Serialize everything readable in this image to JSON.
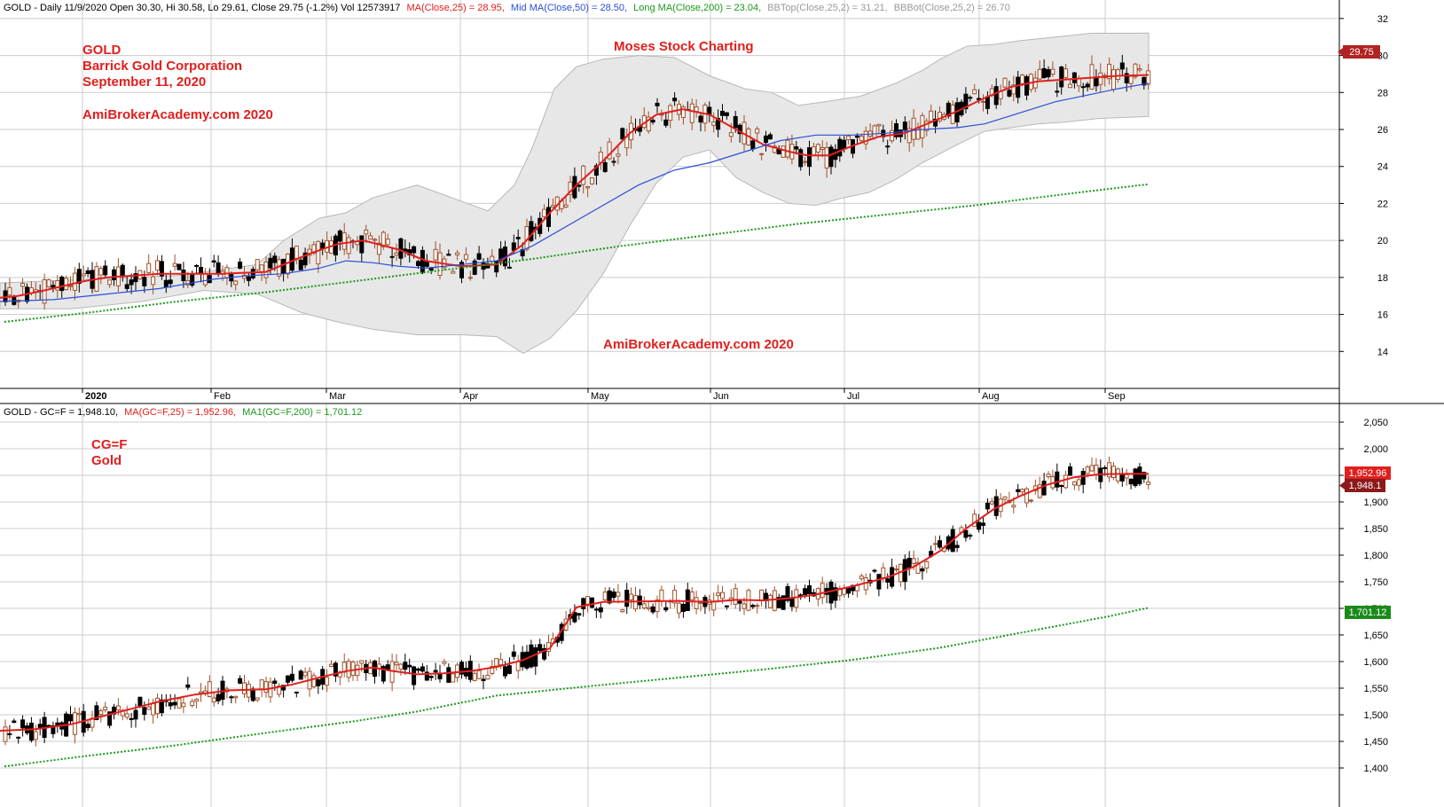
{
  "colors": {
    "background": "#ffffff",
    "grid": "#cccccc",
    "up_candle": "#a0522d",
    "down_candle": "#000000",
    "ma_short": "#e0201d",
    "ma_mid": "#2a4fd6",
    "ma_long": "#1a9a1a",
    "bollinger_fill": "#e7e7e7",
    "bollinger_edge": "#b8b8b8",
    "annotation_red": "#e0201d",
    "price_box_red": "#b22222",
    "price_box_green": "#1a8a1a"
  },
  "top_panel": {
    "header": {
      "title": "GOLD - Daily 11/9/2020 Open 30.30, Hi 30.58, Lo 29.61, Close 29.75 (-1.2%) Vol 12573917",
      "ma_short": "MA(Close,25) = 28.95,",
      "ma_mid": "Mid MA(Close,50) = 28.50,",
      "ma_long": "Long MA(Close,200) = 23.04,",
      "bb_top": "BBTop(Close,25,2) = 31.21,",
      "bb_bot": "BBBot(Close,25,2) = 26.70"
    },
    "annotations": {
      "line1": "GOLD",
      "line2": "Barrick Gold Corporation",
      "line3": "September 11, 2020",
      "line4": "AmiBrokerAcademy.com  2020",
      "center_top": "Moses Stock Charting",
      "center_bottom": "AmiBrokerAcademy.com  2020"
    },
    "price_label": "29.75"
  },
  "bottom_panel": {
    "header": {
      "title": "GOLD - GC=F = 1,948.10,",
      "ma": "MA(GC=F,25) = 1,952.96,",
      "ma1": "MA1(GC=F,200) = 1,701.12"
    },
    "annotations": {
      "line1": "CG=F",
      "line2": "Gold"
    },
    "price_labels": {
      "ma": "1,952.96",
      "close": "1,948.1",
      "ma200": "1,701.12"
    }
  },
  "x_axis": {
    "months": [
      "2020",
      "Feb",
      "Mar",
      "Apr",
      "May",
      "Jun",
      "Jul",
      "Aug",
      "Sep"
    ]
  },
  "chart_data": [
    {
      "type": "candlestick",
      "name": "GOLD",
      "ylim": [
        12,
        33
      ],
      "y_ticks": [
        "14",
        "16",
        "18",
        "20",
        "22",
        "24",
        "26",
        "28",
        "30",
        "32"
      ],
      "grid": true,
      "months": [
        "2020",
        "Feb",
        "Mar",
        "Apr",
        "May",
        "Jun",
        "Jul",
        "Aug",
        "Sep"
      ],
      "series": [
        {
          "name": "MA(Close,25)",
          "points": [
            [
              0,
              16.9
            ],
            [
              20,
              17.0
            ],
            [
              50,
              17.3
            ],
            [
              95,
              17.8
            ],
            [
              120,
              18.0
            ],
            [
              180,
              18.2
            ],
            [
              250,
              18.2
            ],
            [
              300,
              18.3
            ],
            [
              350,
              19.3
            ],
            [
              380,
              19.8
            ],
            [
              410,
              20.0
            ],
            [
              450,
              19.5
            ],
            [
              480,
              18.9
            ],
            [
              520,
              18.6
            ],
            [
              560,
              18.7
            ],
            [
              590,
              19.8
            ],
            [
              620,
              21.5
            ],
            [
              650,
              23.0
            ],
            [
              680,
              24.3
            ],
            [
              710,
              25.8
            ],
            [
              740,
              26.8
            ],
            [
              770,
              27.1
            ],
            [
              800,
              26.8
            ],
            [
              830,
              26.0
            ],
            [
              860,
              25.2
            ],
            [
              890,
              24.8
            ],
            [
              910,
              24.6
            ],
            [
              935,
              24.6
            ],
            [
              960,
              25.1
            ],
            [
              990,
              25.6
            ],
            [
              1020,
              25.8
            ],
            [
              1050,
              26.4
            ],
            [
              1080,
              27.0
            ],
            [
              1110,
              27.7
            ],
            [
              1140,
              28.3
            ],
            [
              1170,
              28.6
            ],
            [
              1200,
              28.7
            ],
            [
              1230,
              28.8
            ],
            [
              1260,
              28.9
            ],
            [
              1295,
              28.95
            ]
          ]
        },
        {
          "name": "Mid MA(Close,50)",
          "points": [
            [
              0,
              16.7
            ],
            [
              60,
              16.8
            ],
            [
              120,
              17.1
            ],
            [
              180,
              17.4
            ],
            [
              240,
              17.9
            ],
            [
              280,
              18.1
            ],
            [
              320,
              18.2
            ],
            [
              360,
              18.5
            ],
            [
              390,
              18.9
            ],
            [
              420,
              18.8
            ],
            [
              450,
              18.6
            ],
            [
              480,
              18.5
            ],
            [
              520,
              18.7
            ],
            [
              560,
              18.9
            ],
            [
              600,
              19.7
            ],
            [
              640,
              20.8
            ],
            [
              680,
              21.9
            ],
            [
              720,
              23.0
            ],
            [
              760,
              23.8
            ],
            [
              800,
              24.2
            ],
            [
              840,
              24.8
            ],
            [
              880,
              25.4
            ],
            [
              920,
              25.7
            ],
            [
              960,
              25.7
            ],
            [
              1000,
              25.8
            ],
            [
              1040,
              26.0
            ],
            [
              1080,
              26.1
            ],
            [
              1110,
              26.3
            ],
            [
              1150,
              26.9
            ],
            [
              1190,
              27.5
            ],
            [
              1230,
              27.9
            ],
            [
              1260,
              28.2
            ],
            [
              1295,
              28.5
            ]
          ]
        },
        {
          "name": "Long MA(Close,200)",
          "points": [
            [
              5,
              15.6
            ],
            [
              100,
              16.1
            ],
            [
              200,
              16.7
            ],
            [
              300,
              17.2
            ],
            [
              400,
              17.8
            ],
            [
              500,
              18.4
            ],
            [
              600,
              19.0
            ],
            [
              700,
              19.7
            ],
            [
              800,
              20.3
            ],
            [
              900,
              20.9
            ],
            [
              1000,
              21.4
            ],
            [
              1100,
              21.9
            ],
            [
              1200,
              22.5
            ],
            [
              1295,
              23.04
            ]
          ]
        }
      ],
      "bollinger": {
        "upper": [
          [
            0,
            17.7
          ],
          [
            100,
            17.9
          ],
          [
            200,
            18.1
          ],
          [
            290,
            18.7
          ],
          [
            320,
            20.0
          ],
          [
            360,
            21.2
          ],
          [
            390,
            21.5
          ],
          [
            420,
            22.3
          ],
          [
            470,
            23.0
          ],
          [
            510,
            22.3
          ],
          [
            550,
            21.6
          ],
          [
            580,
            23.0
          ],
          [
            600,
            25.0
          ],
          [
            625,
            28.2
          ],
          [
            650,
            29.4
          ],
          [
            680,
            29.8
          ],
          [
            720,
            30.0
          ],
          [
            760,
            29.9
          ],
          [
            800,
            28.9
          ],
          [
            840,
            28.2
          ],
          [
            870,
            28.0
          ],
          [
            900,
            27.3
          ],
          [
            930,
            27.5
          ],
          [
            970,
            27.8
          ],
          [
            1010,
            28.5
          ],
          [
            1040,
            29.2
          ],
          [
            1060,
            29.8
          ],
          [
            1090,
            30.5
          ],
          [
            1120,
            30.6
          ],
          [
            1150,
            30.8
          ],
          [
            1190,
            31.0
          ],
          [
            1230,
            31.2
          ],
          [
            1270,
            31.2
          ],
          [
            1295,
            31.21
          ]
        ],
        "lower": [
          [
            0,
            16.3
          ],
          [
            80,
            16.3
          ],
          [
            160,
            16.7
          ],
          [
            230,
            17.3
          ],
          [
            290,
            17.1
          ],
          [
            340,
            16.1
          ],
          [
            380,
            15.6
          ],
          [
            420,
            15.2
          ],
          [
            470,
            14.9
          ],
          [
            520,
            14.9
          ],
          [
            560,
            14.8
          ],
          [
            590,
            13.9
          ],
          [
            620,
            14.7
          ],
          [
            650,
            16.2
          ],
          [
            680,
            18.2
          ],
          [
            710,
            20.8
          ],
          [
            740,
            23.1
          ],
          [
            770,
            24.5
          ],
          [
            800,
            24.9
          ],
          [
            830,
            23.4
          ],
          [
            860,
            22.6
          ],
          [
            890,
            22.0
          ],
          [
            920,
            21.9
          ],
          [
            950,
            22.3
          ],
          [
            980,
            22.6
          ],
          [
            1010,
            23.3
          ],
          [
            1040,
            24.2
          ],
          [
            1080,
            25.2
          ],
          [
            1110,
            25.9
          ],
          [
            1140,
            26.1
          ],
          [
            1170,
            26.3
          ],
          [
            1200,
            26.4
          ],
          [
            1240,
            26.6
          ],
          [
            1295,
            26.7
          ]
        ]
      }
    },
    {
      "type": "candlestick",
      "name": "GC=F",
      "ylim": [
        1385,
        2085
      ],
      "y_ticks": [
        "1,400",
        "1,450",
        "1,500",
        "1,550",
        "1,600",
        "1,650",
        "1,700",
        "1,750",
        "1,800",
        "1,850",
        "1,900",
        "1,950",
        "2,000",
        "2,050"
      ],
      "grid": true,
      "series": [
        {
          "name": "MA(GC=F,25)",
          "points": [
            [
              0,
              1470
            ],
            [
              40,
              1473
            ],
            [
              80,
              1482
            ],
            [
              110,
              1495
            ],
            [
              150,
              1512
            ],
            [
              180,
              1525
            ],
            [
              220,
              1538
            ],
            [
              260,
              1546
            ],
            [
              300,
              1548
            ],
            [
              330,
              1557
            ],
            [
              360,
              1570
            ],
            [
              390,
              1582
            ],
            [
              420,
              1589
            ],
            [
              440,
              1583
            ],
            [
              470,
              1576
            ],
            [
              500,
              1578
            ],
            [
              530,
              1582
            ],
            [
              560,
              1590
            ],
            [
              590,
              1603
            ],
            [
              620,
              1625
            ],
            [
              650,
              1702
            ],
            [
              680,
              1712
            ],
            [
              720,
              1713
            ],
            [
              760,
              1714
            ],
            [
              800,
              1712
            ],
            [
              830,
              1716
            ],
            [
              860,
              1715
            ],
            [
              890,
              1719
            ],
            [
              920,
              1726
            ],
            [
              960,
              1741
            ],
            [
              1000,
              1758
            ],
            [
              1030,
              1778
            ],
            [
              1060,
              1808
            ],
            [
              1090,
              1851
            ],
            [
              1120,
              1886
            ],
            [
              1150,
              1911
            ],
            [
              1180,
              1932
            ],
            [
              1210,
              1946
            ],
            [
              1240,
              1952
            ],
            [
              1270,
              1953
            ],
            [
              1295,
              1952.96
            ]
          ]
        },
        {
          "name": "MA1(GC=F,200)",
          "points": [
            [
              5,
              1403
            ],
            [
              100,
              1423
            ],
            [
              200,
              1443
            ],
            [
              300,
              1466
            ],
            [
              400,
              1488
            ],
            [
              470,
              1506
            ],
            [
              560,
              1536
            ],
            [
              660,
              1553
            ],
            [
              760,
              1569
            ],
            [
              860,
              1585
            ],
            [
              960,
              1603
            ],
            [
              1060,
              1626
            ],
            [
              1160,
              1657
            ],
            [
              1250,
              1685
            ],
            [
              1295,
              1701.12
            ]
          ]
        }
      ]
    }
  ]
}
